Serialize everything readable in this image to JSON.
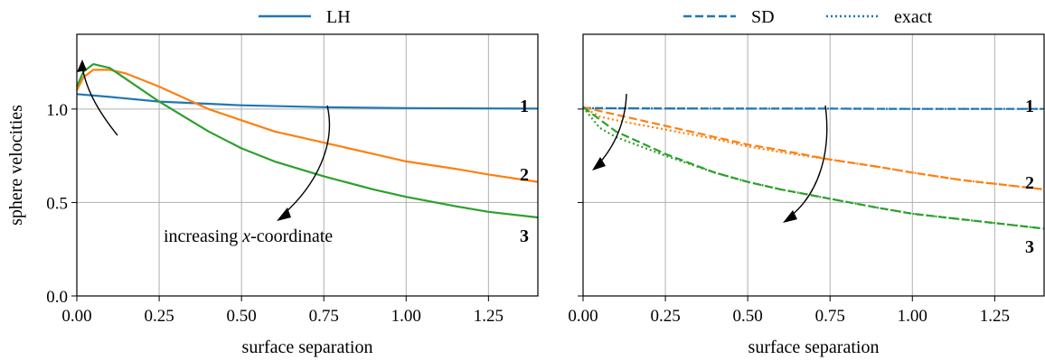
{
  "legend": {
    "lh": {
      "label": "LH",
      "style": "solid"
    },
    "sd": {
      "label": "SD",
      "style": "dashed"
    },
    "exact": {
      "label": "exact",
      "style": "dotted"
    }
  },
  "colors": {
    "curve1": "#1f77b4",
    "curve2": "#ff7f0e",
    "curve3": "#2ca02c",
    "grid": "#b0b0b0",
    "axis": "#000000"
  },
  "ylabel": "sphere velocities",
  "xlabel": "surface separation",
  "annotation": {
    "prefix": "increasing ",
    "italic": "x",
    "suffix": "-coordinate"
  },
  "curve_labels": [
    "1",
    "2",
    "3"
  ],
  "chart_data": [
    {
      "type": "line",
      "panel": "left",
      "xlabel": "surface separation",
      "ylabel": "sphere velocities",
      "xlim": [
        0,
        1.4
      ],
      "ylim": [
        0,
        1.4
      ],
      "xticks": [
        0,
        0.25,
        0.5,
        0.75,
        1.0,
        1.25
      ],
      "xtick_labels": [
        "0.00",
        "0.25",
        "0.50",
        "0.75",
        "1.00",
        "1.25"
      ],
      "yticks": [
        0,
        0.5,
        1.0
      ],
      "ytick_labels": [
        "0.0",
        "0.5",
        "1.0"
      ],
      "grid": true,
      "series": [
        {
          "name": "1",
          "method": "LH",
          "color": "#1f77b4",
          "style": "solid",
          "x": [
            0,
            0.1,
            0.25,
            0.5,
            0.75,
            1.0,
            1.25,
            1.4
          ],
          "y": [
            1.08,
            1.065,
            1.04,
            1.02,
            1.01,
            1.005,
            1.003,
            1.002
          ]
        },
        {
          "name": "2",
          "method": "LH",
          "color": "#ff7f0e",
          "style": "solid",
          "x": [
            0,
            0.02,
            0.05,
            0.1,
            0.15,
            0.25,
            0.4,
            0.5,
            0.6,
            0.75,
            0.9,
            1.0,
            1.15,
            1.25,
            1.4
          ],
          "y": [
            1.1,
            1.17,
            1.21,
            1.21,
            1.19,
            1.12,
            1.0,
            0.94,
            0.88,
            0.82,
            0.76,
            0.72,
            0.68,
            0.65,
            0.61
          ]
        },
        {
          "name": "3",
          "method": "LH",
          "color": "#2ca02c",
          "style": "solid",
          "x": [
            0,
            0.02,
            0.05,
            0.1,
            0.15,
            0.25,
            0.4,
            0.5,
            0.6,
            0.75,
            0.9,
            1.0,
            1.15,
            1.25,
            1.4
          ],
          "y": [
            1.12,
            1.2,
            1.24,
            1.22,
            1.16,
            1.04,
            0.88,
            0.79,
            0.72,
            0.64,
            0.57,
            0.53,
            0.48,
            0.45,
            0.42
          ]
        }
      ]
    },
    {
      "type": "line",
      "panel": "right",
      "xlabel": "surface separation",
      "ylabel": "",
      "xlim": [
        0,
        1.4
      ],
      "ylim": [
        0,
        1.4
      ],
      "xticks": [
        0,
        0.25,
        0.5,
        0.75,
        1.0,
        1.25
      ],
      "xtick_labels": [
        "0.00",
        "0.25",
        "0.50",
        "0.75",
        "1.00",
        "1.25"
      ],
      "yticks": [
        0,
        0.5,
        1.0
      ],
      "ytick_labels": [
        "",
        "",
        ""
      ],
      "grid": true,
      "series": [
        {
          "name": "1",
          "method": "SD",
          "color": "#1f77b4",
          "style": "dashed",
          "x": [
            0,
            0.25,
            0.5,
            0.75,
            1.0,
            1.25,
            1.4
          ],
          "y": [
            1.005,
            1.003,
            1.002,
            1.002,
            1.001,
            1.001,
            1.001
          ]
        },
        {
          "name": "1",
          "method": "exact",
          "color": "#1f77b4",
          "style": "dotted",
          "x": [
            0,
            0.25,
            0.5,
            0.75,
            1.0,
            1.25,
            1.4
          ],
          "y": [
            1.005,
            1.003,
            1.002,
            1.002,
            1.001,
            1.001,
            1.001
          ]
        },
        {
          "name": "2",
          "method": "SD",
          "color": "#ff7f0e",
          "style": "dashed",
          "x": [
            0,
            0.1,
            0.25,
            0.4,
            0.5,
            0.6,
            0.75,
            0.9,
            1.0,
            1.15,
            1.25,
            1.4
          ],
          "y": [
            1.01,
            0.97,
            0.91,
            0.85,
            0.81,
            0.78,
            0.73,
            0.69,
            0.66,
            0.62,
            0.6,
            0.57
          ]
        },
        {
          "name": "2",
          "method": "exact",
          "color": "#ff7f0e",
          "style": "dotted",
          "x": [
            0,
            0.05,
            0.1,
            0.25,
            0.4,
            0.5,
            0.6,
            0.75,
            0.9,
            1.0,
            1.15,
            1.25,
            1.4
          ],
          "y": [
            1.01,
            0.96,
            0.94,
            0.89,
            0.84,
            0.8,
            0.77,
            0.73,
            0.69,
            0.66,
            0.62,
            0.6,
            0.57
          ]
        },
        {
          "name": "3",
          "method": "SD",
          "color": "#2ca02c",
          "style": "dashed",
          "x": [
            0,
            0.1,
            0.25,
            0.4,
            0.5,
            0.6,
            0.75,
            0.9,
            1.0,
            1.15,
            1.25,
            1.4
          ],
          "y": [
            1.01,
            0.88,
            0.76,
            0.66,
            0.61,
            0.57,
            0.52,
            0.47,
            0.44,
            0.41,
            0.39,
            0.36
          ]
        },
        {
          "name": "3",
          "method": "exact",
          "color": "#2ca02c",
          "style": "dotted",
          "x": [
            0,
            0.05,
            0.1,
            0.25,
            0.4,
            0.5,
            0.6,
            0.75,
            0.9,
            1.0,
            1.15,
            1.25,
            1.4
          ],
          "y": [
            1.01,
            0.9,
            0.85,
            0.75,
            0.66,
            0.61,
            0.57,
            0.52,
            0.47,
            0.44,
            0.41,
            0.39,
            0.36
          ]
        }
      ]
    }
  ]
}
